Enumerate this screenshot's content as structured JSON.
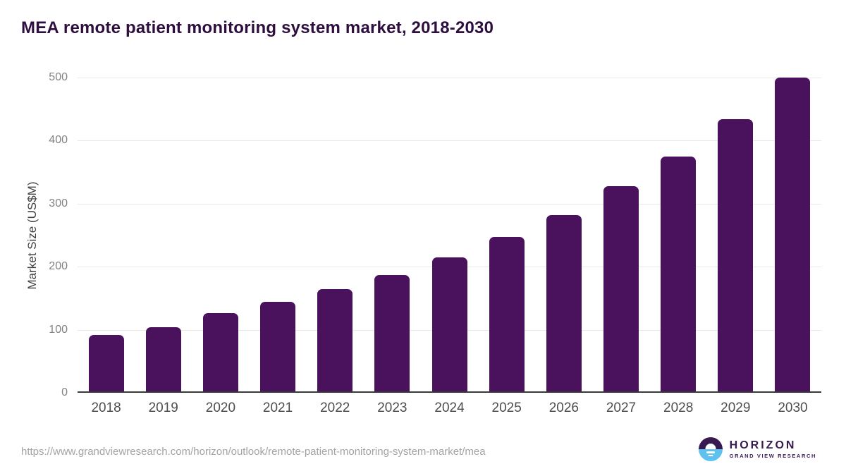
{
  "title": "MEA remote patient monitoring system market, 2018-2030",
  "footer": {
    "source_url": "https://www.grandviewresearch.com/horizon/outlook/remote-patient-monitoring-system-market/mea"
  },
  "logo": {
    "name": "HORIZON",
    "subtitle": "GRAND VIEW RESEARCH"
  },
  "colors": {
    "bar": "#4a115c",
    "title": "#2e0e3f",
    "gridline": "#e9e9e9",
    "axis_line": "#3a3a3a",
    "logo_purple": "#371a4f",
    "logo_blue": "#5ec1f0"
  },
  "chart_data": {
    "type": "bar",
    "title": "MEA remote patient monitoring system market, 2018-2030",
    "categories": [
      "2018",
      "2019",
      "2020",
      "2021",
      "2022",
      "2023",
      "2024",
      "2025",
      "2026",
      "2027",
      "2028",
      "2029",
      "2030"
    ],
    "values": [
      90,
      102,
      124,
      142,
      162,
      185,
      212,
      245,
      280,
      325,
      373,
      432,
      498
    ],
    "xlabel": "",
    "ylabel": "Market Size (US$M)",
    "ylim": [
      0,
      500
    ],
    "yticks": [
      0,
      100,
      200,
      300,
      400,
      500
    ],
    "grid": true,
    "legend": false,
    "bar_color": "#4a115c"
  }
}
